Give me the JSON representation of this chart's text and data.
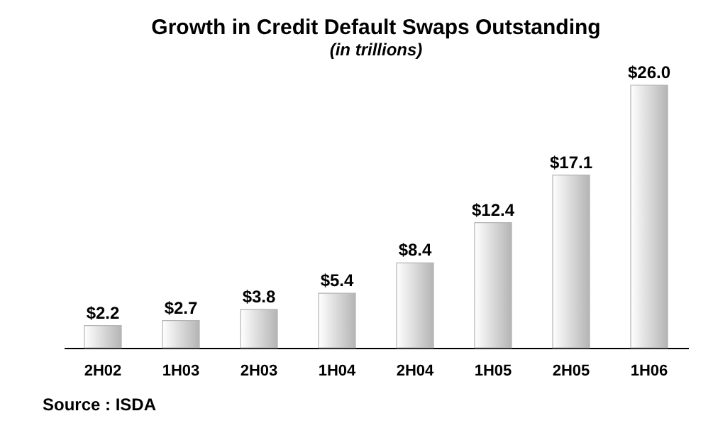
{
  "chart_data": {
    "type": "bar",
    "title": "Growth in Credit Default Swaps Outstanding",
    "subtitle": "(in trillions)",
    "categories": [
      "2H02",
      "1H03",
      "2H03",
      "1H04",
      "2H04",
      "1H05",
      "2H05",
      "1H06"
    ],
    "values": [
      2.2,
      2.7,
      3.8,
      5.4,
      8.4,
      12.4,
      17.1,
      26.0
    ],
    "value_labels": [
      "$2.2",
      "$2.7",
      "$3.8",
      "$5.4",
      "$8.4",
      "$12.4",
      "$17.1",
      "$26.0"
    ],
    "color": "#b4b4b4",
    "grid": false,
    "annotations": [
      "Source : ISDA"
    ]
  }
}
